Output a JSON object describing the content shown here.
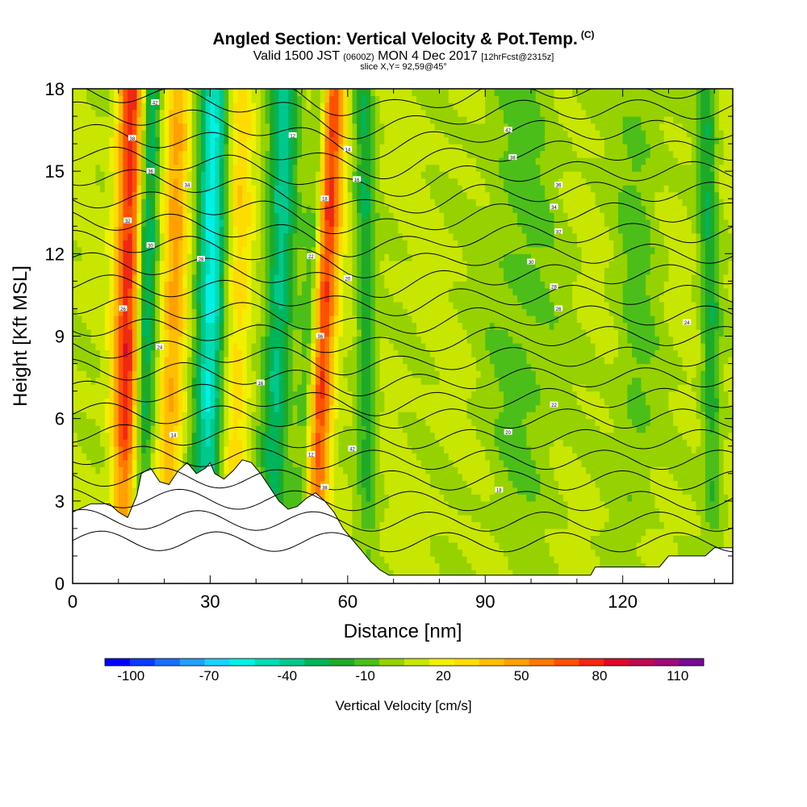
{
  "header": {
    "title": "Angled Section: Vertical Velocity & Pot.Temp.",
    "title_units": "(C)",
    "valid_prefix": "Valid 1500 JST",
    "valid_zulu": "(0600Z)",
    "valid_date": "MON 4 Dec 2017",
    "forecast": "[12hrFcst@2315z]",
    "slice": "slice X,Y= 92,59@45°"
  },
  "chart_data": {
    "type": "heatmap",
    "xlabel": "Distance [nm]",
    "ylabel": "Height [Kft MSL]",
    "xlim": [
      0,
      144
    ],
    "ylim": [
      0,
      18
    ],
    "x_ticks": [
      "0",
      "30",
      "60",
      "90",
      "120"
    ],
    "x_tick_values": [
      0,
      30,
      60,
      90,
      120
    ],
    "y_ticks": [
      "0",
      "3",
      "6",
      "9",
      "12",
      "15",
      "18"
    ],
    "y_tick_values": [
      0,
      3,
      6,
      9,
      12,
      15,
      18
    ],
    "colorbar": {
      "label": "Vertical Velocity [cm/s]",
      "tick_labels": [
        "-100",
        "-70",
        "-40",
        "-10",
        "20",
        "50",
        "80",
        "110"
      ],
      "tick_values": [
        -100,
        -70,
        -40,
        -10,
        20,
        50,
        80,
        110
      ],
      "range": [
        -110,
        120
      ],
      "step": 10,
      "colors": [
        "#0000ff",
        "#0a3cff",
        "#1a6eff",
        "#1fa0ff",
        "#19d2ff",
        "#00f0e6",
        "#00dcb4",
        "#00c88c",
        "#00b45a",
        "#1eaa28",
        "#4cbe1a",
        "#96d200",
        "#c8e600",
        "#f0f000",
        "#ffdc00",
        "#ffbe00",
        "#ffa000",
        "#ff7800",
        "#ff5000",
        "#f02814",
        "#dc0a28",
        "#be0a50",
        "#a00a78",
        "#780a96"
      ]
    },
    "isentrope_label_values": [
      42,
      38,
      36,
      34,
      32,
      30,
      28,
      26,
      24,
      22,
      20,
      18,
      16,
      14,
      12
    ]
  }
}
